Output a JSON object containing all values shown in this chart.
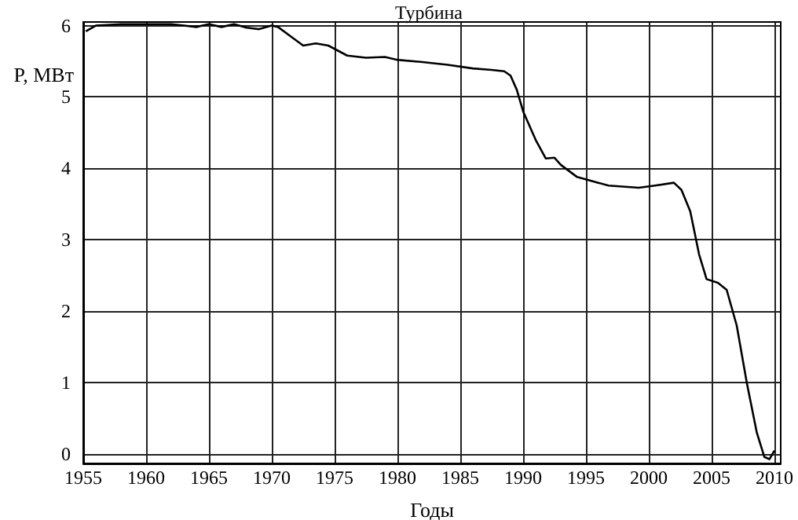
{
  "chart_data": {
    "type": "line",
    "title": "Турбина",
    "xlabel": "Годы",
    "ylabel": "P, МВт",
    "x": [
      1955.2,
      1956,
      1958,
      1960,
      1962,
      1963,
      1964,
      1965,
      1966,
      1967,
      1968,
      1969,
      1970,
      1970.5,
      1971.5,
      1972.5,
      1973.5,
      1974.5,
      1976,
      1977.5,
      1979,
      1980,
      1982,
      1984,
      1986,
      1987.5,
      1988.5,
      1989,
      1989.5,
      1990,
      1991,
      1991.8,
      1992.5,
      1993,
      1994.3,
      1996.8,
      1999.2,
      2000.5,
      2002,
      2002.6,
      2003.3,
      2004,
      2004.6,
      2005.5,
      2006.2,
      2007,
      2007.8,
      2008.6,
      2009.2,
      2009.6,
      2010
    ],
    "series": [
      {
        "color": "#000000",
        "values": [
          5.92,
          6.0,
          6.02,
          6.02,
          6.02,
          6.0,
          5.98,
          6.02,
          5.98,
          6.02,
          5.97,
          5.95,
          6.0,
          5.98,
          5.85,
          5.72,
          5.75,
          5.72,
          5.58,
          5.55,
          5.56,
          5.52,
          5.49,
          5.45,
          5.4,
          5.38,
          5.36,
          5.3,
          5.1,
          4.8,
          4.4,
          4.14,
          4.15,
          4.05,
          3.88,
          3.76,
          3.73,
          3.76,
          3.8,
          3.7,
          3.4,
          2.8,
          2.45,
          2.4,
          2.3,
          1.8,
          1.0,
          0.3,
          -0.04,
          -0.07,
          0.05
        ]
      }
    ],
    "xlim": [
      1955,
      2010.5
    ],
    "xticks": [
      1955,
      1960,
      1965,
      1970,
      1975,
      1980,
      1985,
      1990,
      1995,
      2000,
      2005,
      2010
    ],
    "ylim": [
      -0.13,
      6.05
    ],
    "yticks": [
      0,
      1,
      2,
      3,
      4,
      5,
      6
    ],
    "grid": true,
    "marker": "none",
    "line_style": "solid"
  }
}
